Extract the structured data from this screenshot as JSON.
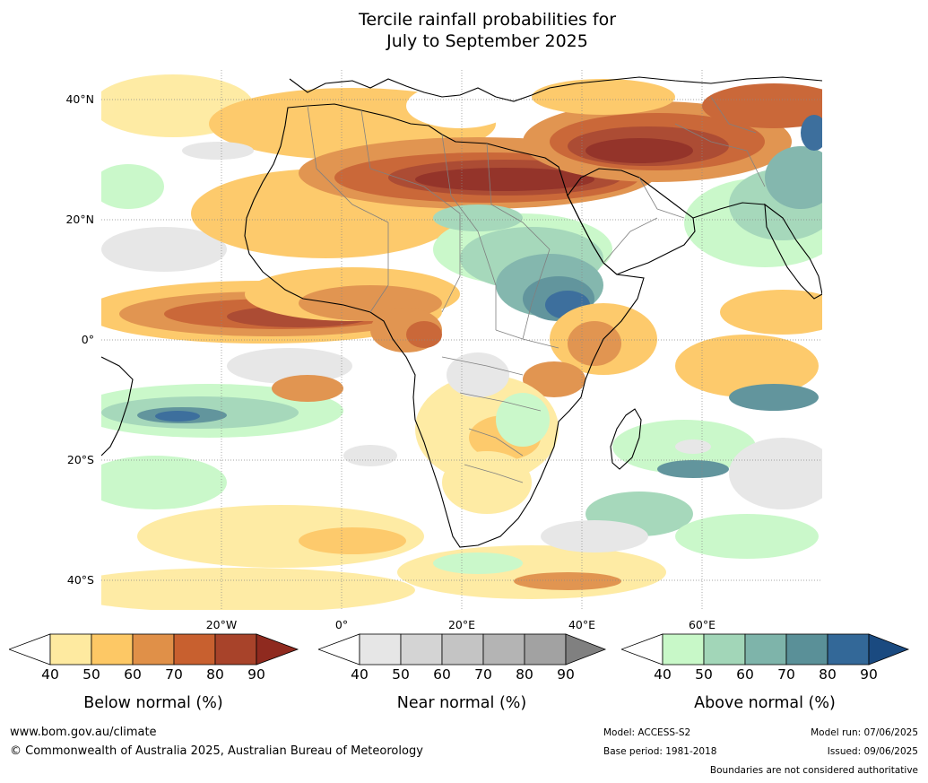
{
  "title_line1": "Tercile rainfall probabilities for",
  "title_line2": "July to September 2025",
  "map": {
    "lat_labels": [
      "40°N",
      "20°N",
      "0°",
      "20°S",
      "40°S"
    ],
    "lon_labels": [
      "20°W",
      "0°",
      "20°E",
      "40°E",
      "60°E"
    ],
    "ocean_color": "#ffffff",
    "land_outline_color": "#000000",
    "border_color": "#808080",
    "grid_color": "#888888"
  },
  "colorbars": [
    {
      "name": "below",
      "title": "Below normal (%)",
      "ticks": [
        "40",
        "50",
        "60",
        "70",
        "80",
        "90"
      ],
      "colors": [
        "#ffffff",
        "#feeaa0",
        "#fdc865",
        "#e09048",
        "#c8602f",
        "#a8432a",
        "#8f2a1f"
      ]
    },
    {
      "name": "near",
      "title": "Near normal (%)",
      "ticks": [
        "40",
        "50",
        "60",
        "70",
        "80",
        "90"
      ],
      "colors": [
        "#ffffff",
        "#e6e6e6",
        "#d4d4d4",
        "#c4c4c4",
        "#b4b4b4",
        "#a2a2a2",
        "#808080"
      ]
    },
    {
      "name": "above",
      "title": "Above normal (%)",
      "ticks": [
        "40",
        "50",
        "60",
        "70",
        "80",
        "90"
      ],
      "colors": [
        "#ffffff",
        "#c8f8c8",
        "#a2d6b8",
        "#7eb4aa",
        "#5a9098",
        "#336898",
        "#1a4a80"
      ]
    }
  ],
  "footer": {
    "url": "www.bom.gov.au/climate",
    "copyright": "© Commonwealth of Australia 2025, Australian Bureau of Meteorology",
    "model": "Model: ACCESS-S2",
    "base_period": "Base period: 1981-2018",
    "model_run": "Model run: 07/06/2025",
    "issued": "Issued: 09/06/2025",
    "boundaries_note": "Boundaries are not considered authoritative"
  }
}
